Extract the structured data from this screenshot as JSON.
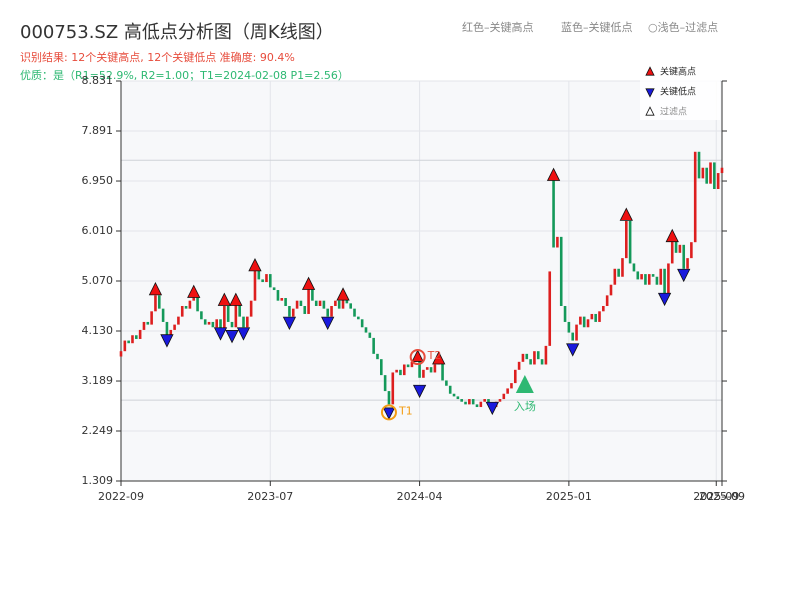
{
  "chart_data": {
    "type": "candlestick",
    "title": "000753.SZ 高低点分析图（周K线图）",
    "summary": "识别结果: 12个关键高点, 12个关键低点   准确度: 90.4%",
    "quality": "优质：是（R1=52.9%, R2=1.00；T1=2024-02-08 P1=2.56）",
    "header_notes": [
      "红色–关键高点",
      "蓝色–关键低点",
      "○浅色–过滤点"
    ],
    "up_color": "#dd1f1f",
    "down_color": "#14995a",
    "grid": true,
    "x": [
      0,
      1,
      2,
      3,
      4,
      5,
      6,
      7,
      8,
      9,
      10,
      11,
      12,
      13,
      14,
      15,
      16,
      17,
      18,
      19,
      20,
      21,
      22,
      23,
      24,
      25,
      26,
      27,
      28,
      29,
      30,
      31,
      32,
      33,
      34,
      35,
      36,
      37,
      38,
      39,
      40,
      41,
      42,
      43,
      44,
      45,
      46,
      47,
      48,
      49,
      50,
      51,
      52,
      53,
      54,
      55,
      56,
      57,
      58,
      59,
      60,
      61,
      62,
      63,
      64,
      65,
      66,
      67,
      68,
      69,
      70,
      71,
      72,
      73,
      74,
      75,
      76,
      77,
      78,
      79,
      80,
      81,
      82,
      83,
      84,
      85,
      86,
      87,
      88,
      89,
      90,
      91,
      92,
      93,
      94,
      95,
      96,
      97,
      98,
      99,
      100,
      101,
      102,
      103,
      104,
      105,
      106,
      107,
      108,
      109,
      110,
      111,
      112,
      113,
      114,
      115,
      116,
      117,
      118,
      119,
      120,
      121,
      122,
      123,
      124,
      125,
      126,
      127,
      128,
      129,
      130,
      131,
      132,
      133,
      134,
      135,
      136,
      137,
      138,
      139,
      140,
      141,
      142,
      143,
      144,
      145,
      146,
      147,
      148,
      149,
      150,
      151,
      152,
      153,
      154,
      155,
      156,
      157
    ],
    "open": [
      3.65,
      3.75,
      3.95,
      3.9,
      4.05,
      3.98,
      4.15,
      4.3,
      4.25,
      4.5,
      4.8,
      4.55,
      4.3,
      4.05,
      4.15,
      4.25,
      4.4,
      4.6,
      4.55,
      4.7,
      4.8,
      4.5,
      4.35,
      4.25,
      4.3,
      4.2,
      4.35,
      4.15,
      4.6,
      4.3,
      4.2,
      4.65,
      4.4,
      4.2,
      4.4,
      4.7,
      5.3,
      5.1,
      5.05,
      5.2,
      4.95,
      4.9,
      4.7,
      4.75,
      4.6,
      4.4,
      4.55,
      4.7,
      4.6,
      4.45,
      4.95,
      4.7,
      4.6,
      4.7,
      4.55,
      4.4,
      4.6,
      4.7,
      4.55,
      4.75,
      4.65,
      4.55,
      4.4,
      4.35,
      4.2,
      4.1,
      4.0,
      3.7,
      3.6,
      3.3,
      3.0,
      2.75,
      3.35,
      3.4,
      3.3,
      3.5,
      3.45,
      3.55,
      3.6,
      3.25,
      3.4,
      3.45,
      3.35,
      3.5,
      3.55,
      3.2,
      3.1,
      2.95,
      2.9,
      2.85,
      2.8,
      2.75,
      2.85,
      2.75,
      2.7,
      2.8,
      2.85,
      2.75,
      2.7,
      2.8,
      2.85,
      2.95,
      3.05,
      3.15,
      3.4,
      3.55,
      3.7,
      3.6,
      3.5,
      3.75,
      3.6,
      3.5,
      3.85,
      7.0,
      5.7,
      5.9,
      4.6,
      4.3,
      4.1,
      3.95,
      4.25,
      4.4,
      4.2,
      4.35,
      4.45,
      4.3,
      4.5,
      4.6,
      4.8,
      5.0,
      5.3,
      5.15,
      5.5,
      6.2,
      5.4,
      5.25,
      5.1,
      5.2,
      5.0,
      5.2,
      5.15,
      5.0,
      5.3,
      4.8,
      5.4,
      5.85,
      5.6,
      5.75,
      5.3,
      5.5,
      5.8,
      7.5,
      7.0,
      7.2,
      6.9,
      7.3,
      6.8,
      7.1
    ],
    "close": [
      3.75,
      3.95,
      3.9,
      4.05,
      3.98,
      4.15,
      4.3,
      4.25,
      4.5,
      4.8,
      4.55,
      4.3,
      4.05,
      4.15,
      4.25,
      4.4,
      4.6,
      4.55,
      4.7,
      4.8,
      4.5,
      4.35,
      4.25,
      4.3,
      4.2,
      4.35,
      4.15,
      4.6,
      4.3,
      4.2,
      4.65,
      4.4,
      4.2,
      4.4,
      4.7,
      5.3,
      5.1,
      5.05,
      5.2,
      4.95,
      4.9,
      4.7,
      4.75,
      4.6,
      4.4,
      4.55,
      4.7,
      4.6,
      4.45,
      4.95,
      4.7,
      4.6,
      4.7,
      4.55,
      4.4,
      4.6,
      4.7,
      4.55,
      4.75,
      4.65,
      4.55,
      4.4,
      4.35,
      4.2,
      4.1,
      4.0,
      3.7,
      3.6,
      3.3,
      3.0,
      2.75,
      3.35,
      3.4,
      3.3,
      3.5,
      3.45,
      3.55,
      3.6,
      3.25,
      3.4,
      3.45,
      3.35,
      3.5,
      3.55,
      3.2,
      3.1,
      2.95,
      2.9,
      2.85,
      2.8,
      2.75,
      2.85,
      2.75,
      2.7,
      2.8,
      2.85,
      2.75,
      2.7,
      2.8,
      2.85,
      2.95,
      3.05,
      3.15,
      3.4,
      3.55,
      3.7,
      3.6,
      3.5,
      3.75,
      3.6,
      3.5,
      3.85,
      5.25,
      5.7,
      5.9,
      4.6,
      4.3,
      4.1,
      3.95,
      4.25,
      4.4,
      4.2,
      4.35,
      4.45,
      4.3,
      4.5,
      4.6,
      4.8,
      5.0,
      5.3,
      5.15,
      5.5,
      6.2,
      5.4,
      5.25,
      5.1,
      5.2,
      5.0,
      5.2,
      5.15,
      5.0,
      5.3,
      4.8,
      5.4,
      5.85,
      5.6,
      5.75,
      5.3,
      5.5,
      5.8,
      7.5,
      7.0,
      7.2,
      6.9,
      7.3,
      6.8,
      7.1,
      7.2
    ],
    "xlim": [
      0,
      157
    ],
    "xticks": [
      {
        "value": 0,
        "label": "2022-09"
      },
      {
        "value": 39,
        "label": "2023-07"
      },
      {
        "value": 78,
        "label": "2024-04"
      },
      {
        "value": 117,
        "label": "2025-01"
      },
      {
        "value": 155.5,
        "label": "2025-09"
      },
      {
        "value": 157,
        "label": "2025-09"
      }
    ],
    "ylim": [
      1.309,
      8.831
    ],
    "yticks": [
      1.309,
      2.249,
      3.189,
      {
        "value": 4.13,
        "label": "4.130"
      },
      {
        "value": 5.07,
        "label": "5.070"
      },
      {
        "value": 6.01,
        "label": "6.010"
      },
      {
        "value": 6.95,
        "label": "6.950"
      },
      7.891,
      8.831
    ],
    "hlines": [
      7.34,
      2.83
    ],
    "markers": [
      {
        "name": "关键高点",
        "color": "#ee1111",
        "shape": "up",
        "x": [
          9,
          19,
          27,
          30,
          35,
          49,
          58,
          83,
          113,
          132,
          144
        ],
        "values": [
          4.9,
          4.85,
          4.7,
          4.7,
          5.35,
          5.0,
          4.8,
          3.6,
          7.05,
          6.3,
          5.9
        ]
      },
      {
        "name": "关键低点",
        "color": "#1a1add",
        "shape": "down",
        "x": [
          12,
          26,
          29,
          32,
          44,
          54,
          78,
          97,
          118,
          142,
          147
        ],
        "values": [
          3.97,
          4.1,
          4.05,
          4.1,
          4.3,
          4.3,
          3.02,
          2.7,
          3.8,
          4.75,
          5.2
        ]
      },
      {
        "name": "过滤点",
        "color": "#ffffff",
        "shape": "up",
        "x": [],
        "values": []
      }
    ],
    "highlights": [
      {
        "label": "T1",
        "color": "#f39c12",
        "shape": "down",
        "x": 70,
        "value": 2.6
      },
      {
        "label": "T2",
        "color": "#e74c3c",
        "shape": "up",
        "x": 77.5,
        "value": 3.64
      }
    ],
    "entry": {
      "label": "入场",
      "color": "#2eb872",
      "x": 105.5,
      "value": 3.1
    }
  }
}
